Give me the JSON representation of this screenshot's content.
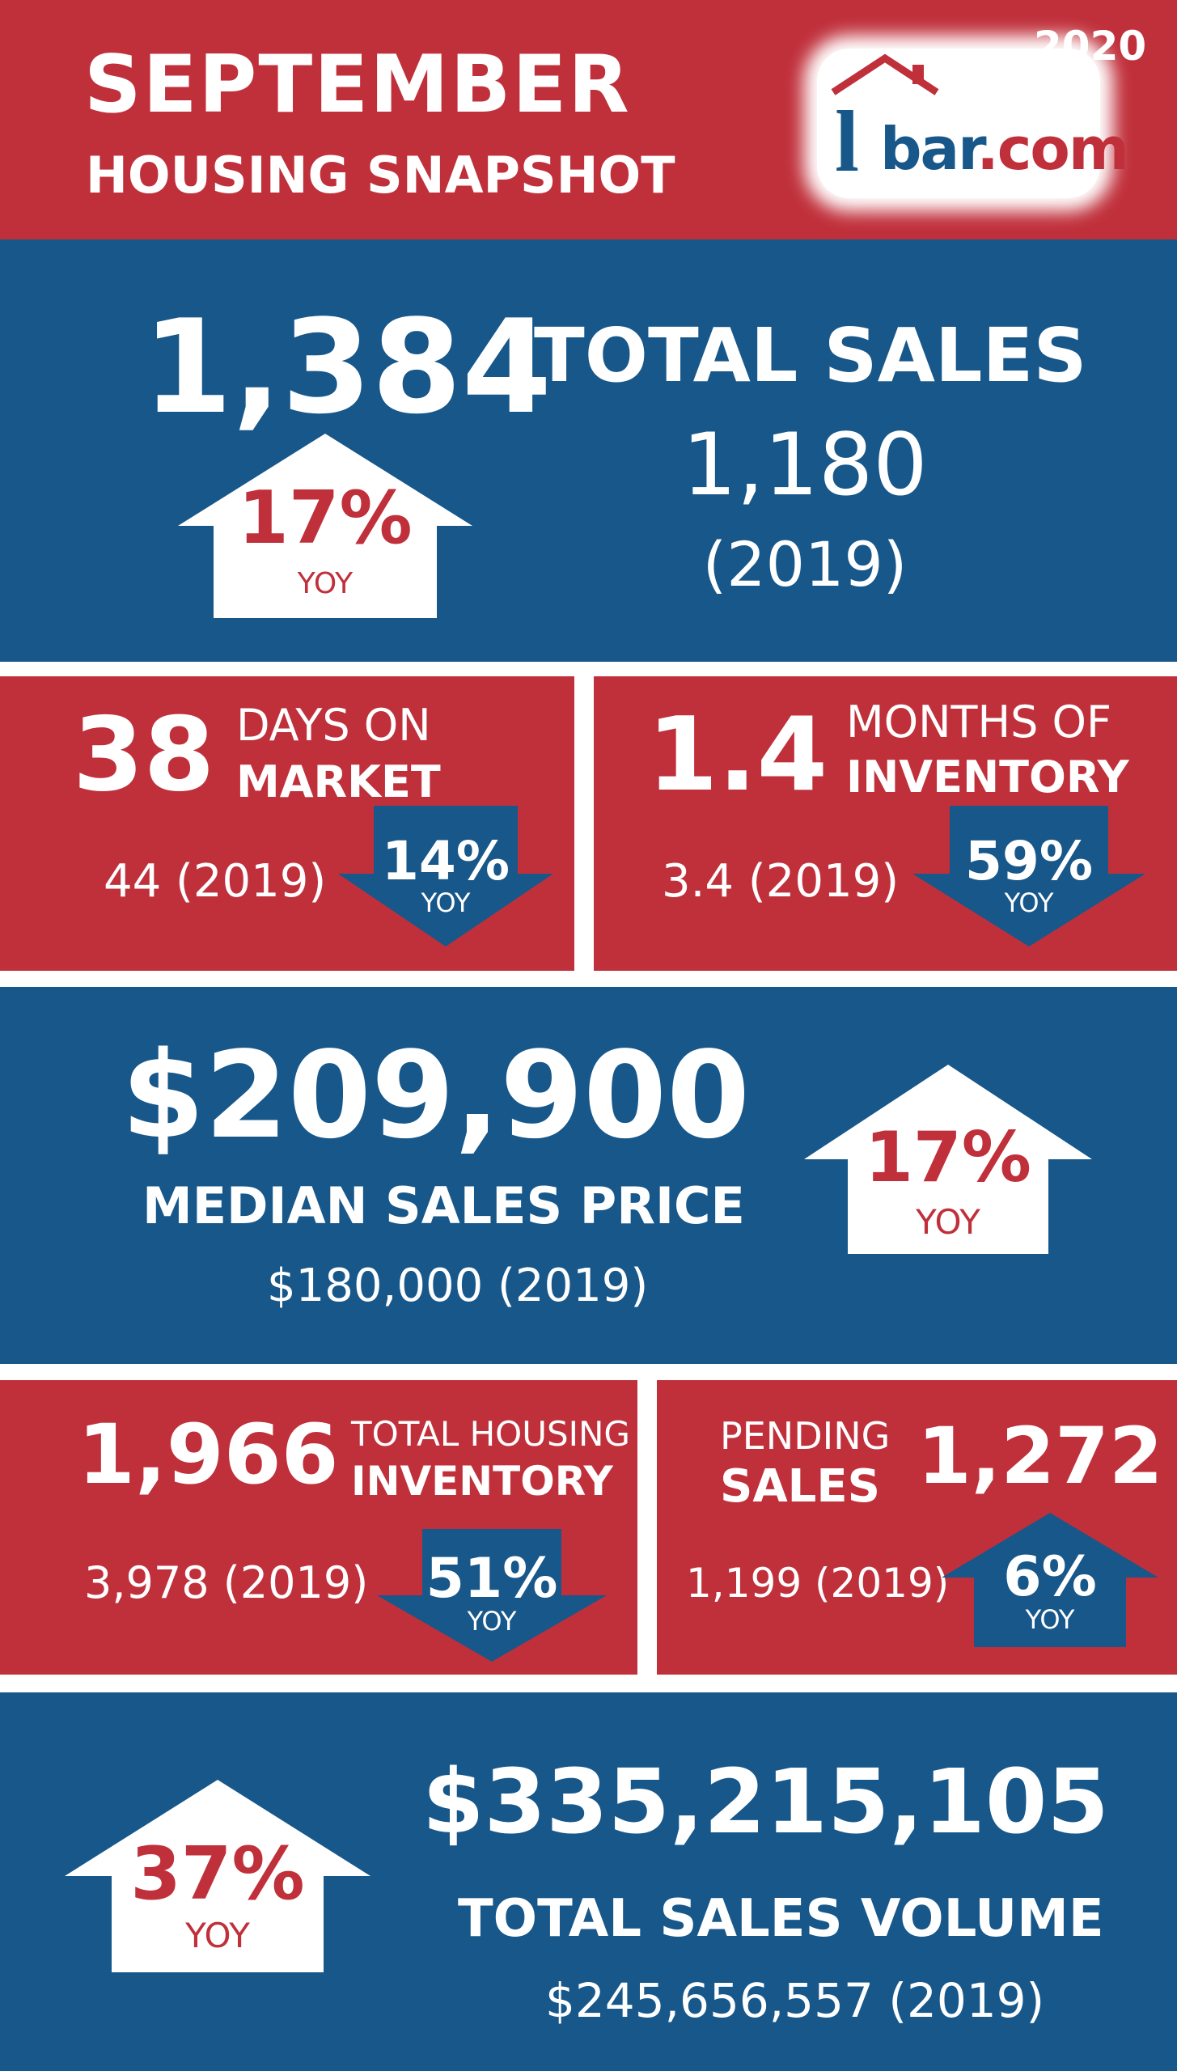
{
  "header": {
    "month": "SEPTEMBER",
    "subtitle": "HOUSING SNAPSHOT",
    "year": "2020",
    "logo": {
      "name": "house-logo",
      "text_prefix": "bar",
      "text_suffix": ".com",
      "mark": "l"
    }
  },
  "total_sales": {
    "value": "1,384",
    "label": "TOTAL SALES",
    "prior_value": "1,180",
    "prior_year": "(2019)",
    "change": "17%",
    "change_label": "YOY",
    "direction": "up"
  },
  "days_on_market": {
    "value": "38",
    "label_line1": "DAYS ON",
    "label_line2": "MARKET",
    "prior": "44 (2019)",
    "change": "14%",
    "change_label": "YOY",
    "direction": "down"
  },
  "months_inventory": {
    "value": "1.4",
    "label_line1": "MONTHS OF",
    "label_line2": "INVENTORY",
    "prior": "3.4 (2019)",
    "change": "59%",
    "change_label": "YOY",
    "direction": "down"
  },
  "median_price": {
    "value": "$209,900",
    "label": "MEDIAN SALES PRICE",
    "prior": "$180,000 (2019)",
    "change": "17%",
    "change_label": "YOY",
    "direction": "up"
  },
  "housing_inventory": {
    "value": "1,966",
    "label_line1": "TOTAL HOUSING",
    "label_line2": "INVENTORY",
    "prior": "3,978 (2019)",
    "change": "51%",
    "change_label": "YOY",
    "direction": "down"
  },
  "pending_sales": {
    "value": "1,272",
    "label_line1": "PENDING",
    "label_line2": "SALES",
    "prior": "1,199 (2019)",
    "change": "6%",
    "change_label": "YOY",
    "direction": "up"
  },
  "sales_volume": {
    "value": "$335,215,105",
    "label": "TOTAL SALES VOLUME",
    "prior": "$245,656,557 (2019)",
    "change": "37%",
    "change_label": "YOY",
    "direction": "up"
  },
  "colors": {
    "red": "#c0303b",
    "blue": "#17578a",
    "white": "#ffffff"
  }
}
